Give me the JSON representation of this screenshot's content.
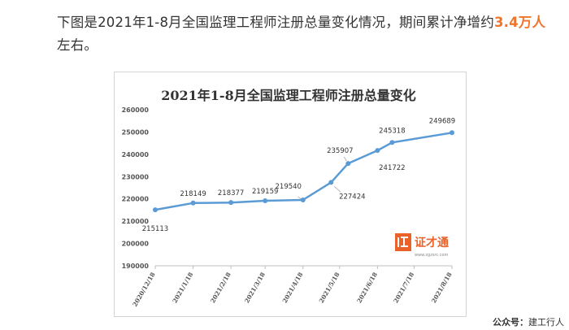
{
  "article": {
    "text_before": "下图是2021年1-8月全国监理工程师注册总量变化情况，期间累计净增约",
    "highlight": "3.4万人",
    "text_after": "左右。"
  },
  "watermark": {
    "brand": "证才通",
    "url": "www.zgzsrc.com",
    "accent_color": "#e8622a"
  },
  "footer": {
    "label": "公众号：",
    "account": "建工行人"
  },
  "colors": {
    "line": "#5b9bd5",
    "highlight": "#f0742c"
  },
  "chart_data": {
    "type": "line",
    "title": "2021年1-8月全国监理工程师注册总量变化",
    "xlabel": "",
    "ylabel": "",
    "ylim": [
      190000,
      260000
    ],
    "y_ticks": [
      190000,
      200000,
      210000,
      220000,
      230000,
      240000,
      250000,
      260000
    ],
    "x_ticks": [
      "2020/12/18",
      "2021/1/18",
      "2021/2/18",
      "2021/3/18",
      "2021/4/18",
      "2021/5/18",
      "2021/6/18",
      "2021/7/18",
      "2021/8/18"
    ],
    "grid": false,
    "legend": "none",
    "points": [
      {
        "x": "2020/12/18",
        "y": 215113
      },
      {
        "x": "2021/1/18",
        "y": 218149
      },
      {
        "x": "2021/2/18",
        "y": 218377
      },
      {
        "x": "2021/3/18",
        "y": 219159
      },
      {
        "x": "2021/4/18",
        "y": 219540
      },
      {
        "x": "2021/5/11",
        "y": 227424
      },
      {
        "x": "2021/5/25",
        "y": 235907
      },
      {
        "x": "2021/6/18",
        "y": 241722
      },
      {
        "x": "2021/6/30",
        "y": 245318
      },
      {
        "x": "2021/8/18",
        "y": 249689
      }
    ]
  }
}
